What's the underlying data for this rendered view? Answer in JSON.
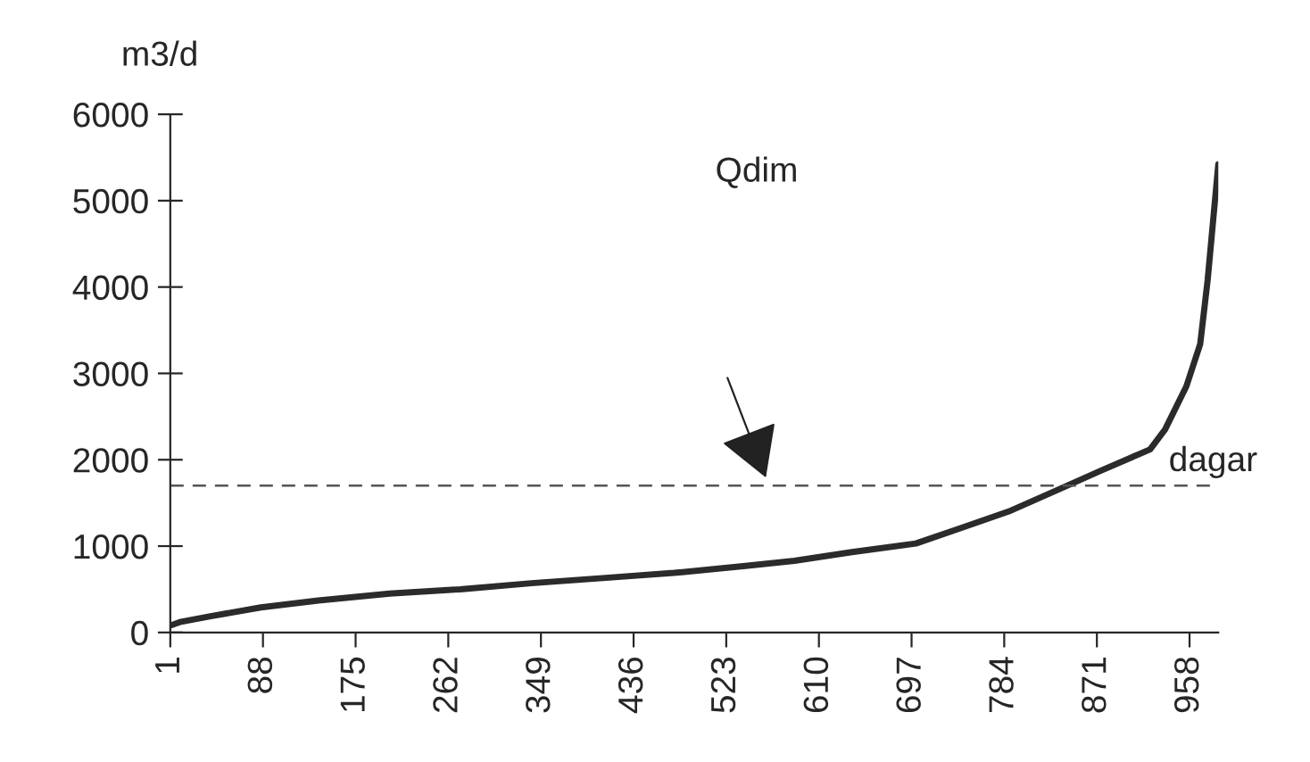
{
  "chart_data": {
    "type": "line",
    "ylabel": "m3/d",
    "xlabel": "dagar",
    "annotations": [
      "Qdim"
    ],
    "x": [
      1,
      10,
      40,
      86,
      140,
      207,
      273,
      340,
      407,
      474,
      541,
      587,
      641,
      701,
      741,
      788,
      834,
      874,
      921,
      935,
      955,
      968,
      975,
      985
    ],
    "series": [
      {
        "color": "#2b2b2b",
        "values": [
          80,
          120,
          190,
          290,
          370,
          450,
          500,
          570,
          630,
          690,
          770,
          830,
          930,
          1030,
          1200,
          1400,
          1650,
          1870,
          2120,
          2350,
          2850,
          3340,
          4080,
          5420
        ]
      }
    ],
    "xlim": [
      1,
      985
    ],
    "xticks": [
      1,
      88,
      175,
      262,
      349,
      436,
      523,
      610,
      697,
      784,
      871,
      958
    ],
    "ylim": [
      0,
      6000
    ],
    "yticks": [
      0,
      1000,
      2000,
      3000,
      4000,
      5000,
      6000
    ],
    "ref_lines": [
      {
        "axis": "y",
        "value": 1700,
        "color": "#555555",
        "line_style": "dashed"
      }
    ],
    "grid": false,
    "legend": false
  }
}
